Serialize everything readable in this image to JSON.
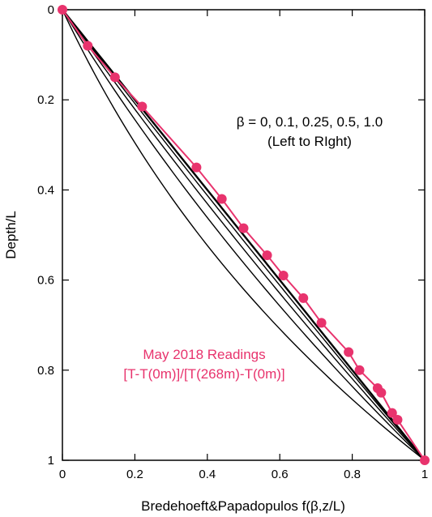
{
  "chart_data": {
    "type": "line",
    "xlabel": "Bredehoeft&Papadopulos f(β,z/L)",
    "ylabel": "Depth/L",
    "xlim": [
      0,
      1
    ],
    "ylim": [
      0,
      1
    ],
    "y_inverted": true,
    "grid": false,
    "x_ticks": [
      "0",
      "0.2",
      "0.4",
      "0.6",
      "0.8",
      "1"
    ],
    "y_ticks": [
      "0",
      "0.2",
      "0.4",
      "0.6",
      "0.8",
      "1"
    ],
    "curve_color": "#000000",
    "marker_color": "#e8336d",
    "annotations": [
      {
        "text": "β = 0, 0.1, 0.25, 0.5, 1.0",
        "color": "#000000"
      },
      {
        "text": "(Left to RIght)",
        "color": "#000000"
      },
      {
        "text": "May 2018 Readings",
        "color": "#e8336d"
      },
      {
        "text": "[T-T(0m)]/[T(268m)-T(0m)]",
        "color": "#e8336d"
      }
    ],
    "curves": [
      {
        "beta": 0
      },
      {
        "beta": 0.1
      },
      {
        "beta": 0.25
      },
      {
        "beta": 0.5
      },
      {
        "beta": 1.0
      }
    ],
    "series": [
      {
        "points": [
          {
            "x": 0.0,
            "y": 0.0
          },
          {
            "x": 0.07,
            "y": 0.08
          },
          {
            "x": 0.145,
            "y": 0.15
          },
          {
            "x": 0.22,
            "y": 0.215
          },
          {
            "x": 0.37,
            "y": 0.35
          },
          {
            "x": 0.44,
            "y": 0.42
          },
          {
            "x": 0.5,
            "y": 0.485
          },
          {
            "x": 0.565,
            "y": 0.545
          },
          {
            "x": 0.61,
            "y": 0.59
          },
          {
            "x": 0.665,
            "y": 0.64
          },
          {
            "x": 0.715,
            "y": 0.695
          },
          {
            "x": 0.79,
            "y": 0.76
          },
          {
            "x": 0.82,
            "y": 0.8
          },
          {
            "x": 0.87,
            "y": 0.84
          },
          {
            "x": 0.88,
            "y": 0.85
          },
          {
            "x": 0.91,
            "y": 0.895
          },
          {
            "x": 0.925,
            "y": 0.91
          },
          {
            "x": 1.0,
            "y": 1.0
          }
        ]
      }
    ]
  }
}
